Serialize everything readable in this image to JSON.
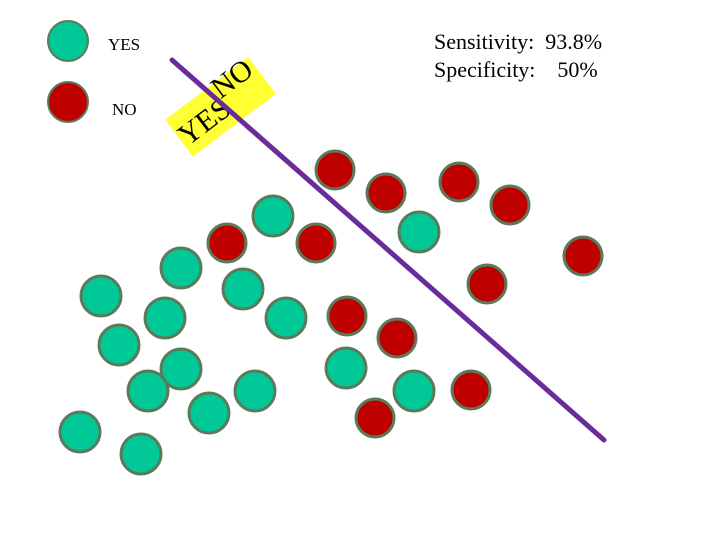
{
  "legend": {
    "yes": {
      "label": "YES",
      "color": "#00C896"
    },
    "no": {
      "label": "NO",
      "color": "#BE0000"
    }
  },
  "point_stroke": "#5A7A5A",
  "boundary": {
    "color": "#6A2C9A",
    "tag": {
      "yes_text": "YES",
      "no_text": "NO",
      "color": "#FFFF33"
    }
  },
  "metrics": {
    "sensitivity": "Sensitivity:  93.8%",
    "specificity": "Specificity:    50%"
  }
}
